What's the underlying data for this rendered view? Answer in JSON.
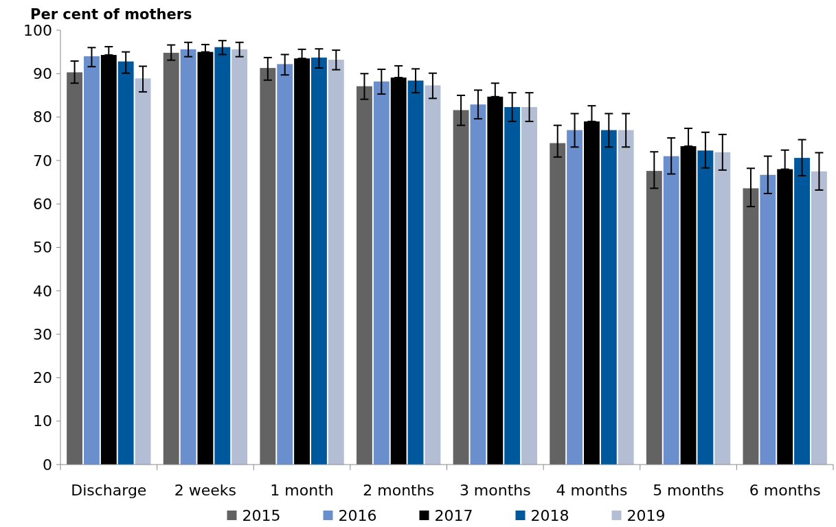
{
  "chart_data": {
    "type": "bar",
    "ylabel": "Per cent of mothers",
    "categories": [
      "Discharge",
      "2 weeks",
      "1 month",
      "2 months",
      "3 months",
      "4 months",
      "5 months",
      "6 months"
    ],
    "series": [
      {
        "name": "2015",
        "color": "#636363",
        "values": [
          90.3,
          94.8,
          91.3,
          87.1,
          81.6,
          74.0,
          67.6,
          63.6
        ],
        "errors": [
          [
            87.8,
            92.9
          ],
          [
            93.1,
            96.6
          ],
          [
            88.5,
            93.7
          ],
          [
            84.1,
            90.0
          ],
          [
            78.1,
            85.0
          ],
          [
            70.8,
            78.1
          ],
          [
            63.6,
            72.0
          ],
          [
            59.4,
            68.2
          ]
        ]
      },
      {
        "name": "2016",
        "color": "#6a8fcc",
        "values": [
          94.0,
          95.6,
          92.2,
          88.2,
          82.9,
          77.0,
          71.0,
          66.7
        ],
        "errors": [
          [
            91.6,
            96.0
          ],
          [
            93.9,
            97.2
          ],
          [
            89.7,
            94.4
          ],
          [
            85.3,
            91.0
          ],
          [
            79.6,
            86.2
          ],
          [
            73.1,
            80.8
          ],
          [
            66.9,
            75.2
          ],
          [
            62.4,
            71.0
          ]
        ]
      },
      {
        "name": "2017",
        "color": "#000000",
        "values": [
          94.3,
          95.0,
          93.5,
          89.1,
          84.7,
          79.0,
          73.3,
          68.0
        ],
        "errors": [
          [
            94.3,
            96.2
          ],
          [
            95.0,
            96.7
          ],
          [
            93.5,
            95.6
          ],
          [
            89.1,
            91.8
          ],
          [
            84.7,
            87.8
          ],
          [
            79.0,
            82.6
          ],
          [
            73.3,
            77.4
          ],
          [
            68.0,
            72.4
          ]
        ]
      },
      {
        "name": "2018",
        "color": "#00589c",
        "values": [
          92.8,
          96.1,
          93.7,
          88.4,
          82.3,
          77.0,
          72.3,
          70.6
        ],
        "errors": [
          [
            90.1,
            95.0
          ],
          [
            94.4,
            97.6
          ],
          [
            91.3,
            95.7
          ],
          [
            85.6,
            91.1
          ],
          [
            79.0,
            85.6
          ],
          [
            73.1,
            80.8
          ],
          [
            68.3,
            76.5
          ],
          [
            66.5,
            74.8
          ]
        ]
      },
      {
        "name": "2019",
        "color": "#b3bdd3",
        "values": [
          88.9,
          95.6,
          93.2,
          87.3,
          82.3,
          77.0,
          71.9,
          67.5
        ],
        "errors": [
          [
            85.8,
            91.7
          ],
          [
            93.9,
            97.2
          ],
          [
            90.9,
            95.4
          ],
          [
            84.3,
            90.1
          ],
          [
            79.0,
            85.6
          ],
          [
            73.1,
            80.8
          ],
          [
            67.8,
            76.0
          ],
          [
            63.2,
            71.8
          ]
        ]
      }
    ],
    "ylim": [
      0,
      100
    ],
    "yticks": [
      0,
      10,
      20,
      30,
      40,
      50,
      60,
      70,
      80,
      90,
      100
    ],
    "grid": false,
    "legend": "bottom"
  }
}
